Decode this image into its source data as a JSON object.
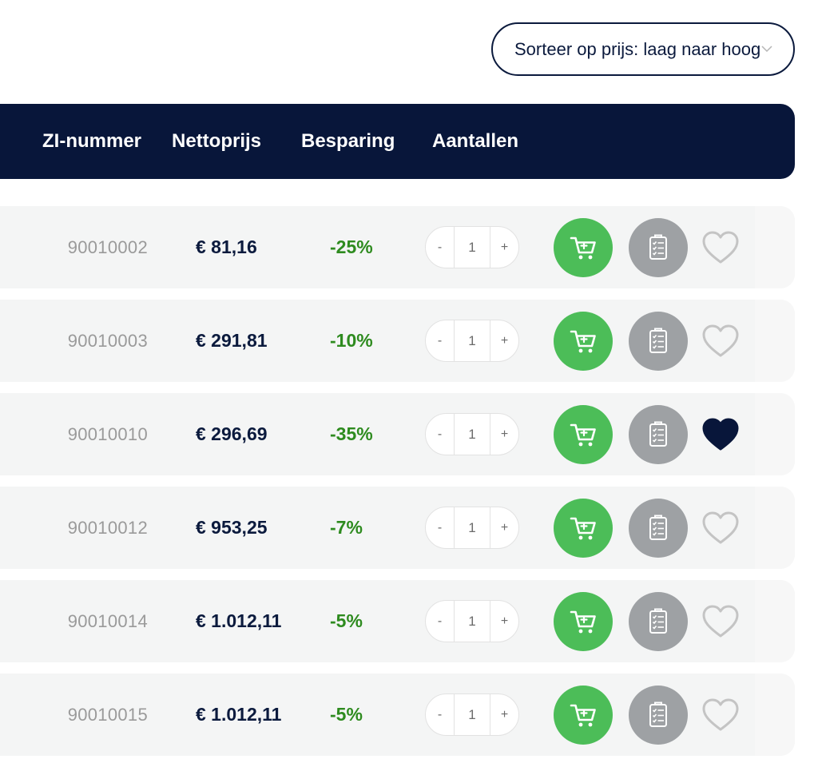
{
  "sort": {
    "selected": "Sorteer op prijs: laag naar hoog",
    "icon": "chevron-down-icon"
  },
  "table": {
    "headers": [
      "ZI-nummer",
      "Nettoprijs",
      "Besparing",
      "Aantallen"
    ],
    "rows": [
      {
        "zi": "90010002",
        "price": "€ 81,16",
        "saving": "-25%",
        "minus": "-",
        "qty": "1",
        "plus": "+",
        "favorite": false
      },
      {
        "zi": "90010003",
        "price": "€ 291,81",
        "saving": "-10%",
        "minus": "-",
        "qty": "1",
        "plus": "+",
        "favorite": false
      },
      {
        "zi": "90010010",
        "price": "€ 296,69",
        "saving": "-35%",
        "minus": "-",
        "qty": "1",
        "plus": "+",
        "favorite": true
      },
      {
        "zi": "90010012",
        "price": "€ 953,25",
        "saving": "-7%",
        "minus": "-",
        "qty": "1",
        "plus": "+",
        "favorite": false
      },
      {
        "zi": "90010014",
        "price": "€ 1.012,11",
        "saving": "-5%",
        "minus": "-",
        "qty": "1",
        "plus": "+",
        "favorite": false
      },
      {
        "zi": "90010015",
        "price": "€ 1.012,11",
        "saving": "-5%",
        "minus": "-",
        "qty": "1",
        "plus": "+",
        "favorite": false
      }
    ]
  },
  "icons": {
    "cart": "shopping-cart-icon",
    "document": "checklist-document-icon",
    "favorite": "heart-icon"
  },
  "colors": {
    "navy": "#08163a",
    "green_button": "#4cbd58",
    "grey_button": "#9ea1a4",
    "saving_text": "#2e8b1f",
    "favorite_active": "#08163a",
    "favorite_inactive": "#c4c4c4"
  }
}
